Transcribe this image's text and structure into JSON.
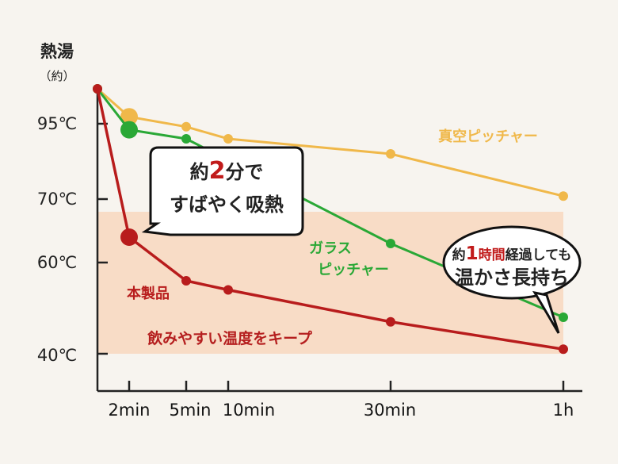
{
  "chart_data": {
    "type": "line",
    "y_title": "熱湯",
    "y_subtitle": "（約）",
    "y_ticks": [
      "95℃",
      "70℃",
      "60℃",
      "40℃"
    ],
    "x_ticks": [
      "2min",
      "5min",
      "10min",
      "30min",
      "1h"
    ],
    "series": [
      {
        "name": "真空ピッチャー",
        "color": "#f0b84a",
        "points": [
          [
            "0",
            100
          ],
          [
            "2min",
            96
          ],
          [
            "5min",
            94
          ],
          [
            "10min",
            90
          ],
          [
            "30min",
            85
          ],
          [
            "1h",
            71
          ]
        ]
      },
      {
        "name": "ガラスピッチャー",
        "color": "#2aa836",
        "points": [
          [
            "0",
            100
          ],
          [
            "2min",
            93
          ],
          [
            "5min",
            90
          ],
          [
            "30min",
            63
          ],
          [
            "1h",
            48
          ]
        ]
      },
      {
        "name": "本製品",
        "color": "#b81c1c",
        "points": [
          [
            "0",
            100
          ],
          [
            "2min",
            64
          ],
          [
            "5min",
            56
          ],
          [
            "10min",
            54
          ],
          [
            "30min",
            47
          ],
          [
            "1h",
            41
          ]
        ]
      }
    ],
    "band": {
      "from": 40,
      "to": 68,
      "label": "飲みやすい温度をキープ",
      "color": "#f8dcc6"
    },
    "callouts": {
      "left_line1_a": "約",
      "left_line1_b": "2",
      "left_line1_c": "分で",
      "left_line2": "すばやく吸熱",
      "right_line1_a": "約",
      "right_line1_b": "1",
      "right_line1_c": "時間",
      "right_line1_d": "経過しても",
      "right_line2": "温かさ長持ち"
    },
    "labels": {
      "vacuum": "真空ピッチャー",
      "glass_1": "ガラス",
      "glass_2": "ピッチャー",
      "product": "本製品"
    }
  }
}
